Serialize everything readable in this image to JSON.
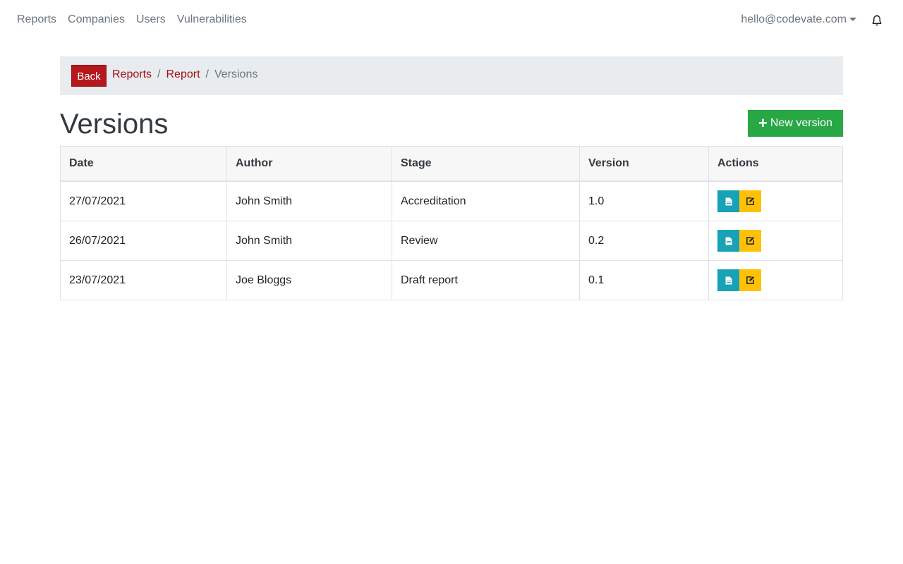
{
  "nav": {
    "links": [
      "Reports",
      "Companies",
      "Users",
      "Vulnerabilities"
    ],
    "user_email": "hello@codevate.com",
    "bell_icon": "bell-icon"
  },
  "breadcrumb": {
    "back_label": "Back",
    "items": [
      "Reports",
      "Report"
    ],
    "current": "Versions"
  },
  "page": {
    "title": "Versions",
    "new_button_label": "New version"
  },
  "table": {
    "headers": [
      "Date",
      "Author",
      "Stage",
      "Version",
      "Actions"
    ],
    "rows": [
      {
        "date": "27/07/2021",
        "author": "John Smith",
        "stage": "Accreditation",
        "version": "1.0"
      },
      {
        "date": "26/07/2021",
        "author": "John Smith",
        "stage": "Review",
        "version": "0.2"
      },
      {
        "date": "23/07/2021",
        "author": "Joe Bloggs",
        "stage": "Draft report",
        "version": "0.1"
      }
    ]
  },
  "colors": {
    "accent_red": "#b5181d",
    "success_green": "#28a745",
    "info_teal": "#17a2b8",
    "warning_yellow": "#ffc107"
  }
}
